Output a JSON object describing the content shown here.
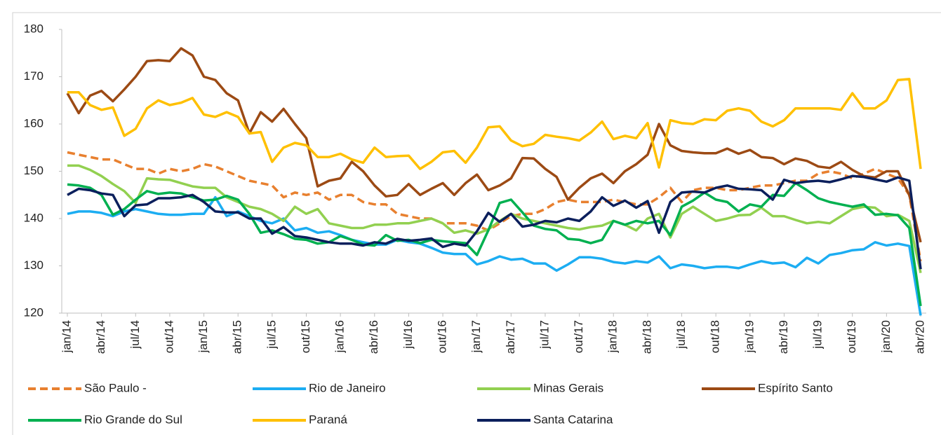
{
  "chart_data": {
    "type": "line",
    "categories": [
      "jan/14",
      null,
      null,
      "abr/14",
      null,
      null,
      "jul/14",
      null,
      null,
      "out/14",
      null,
      null,
      "jan/15",
      null,
      null,
      "abr/15",
      null,
      null,
      "jul/15",
      null,
      null,
      "out/15",
      null,
      null,
      "jan/16",
      null,
      null,
      "abr/16",
      null,
      null,
      "jul/16",
      null,
      null,
      "out/16",
      null,
      null,
      "jan/17",
      null,
      null,
      "abr/17",
      null,
      null,
      "jul/17",
      null,
      null,
      "out/17",
      null,
      null,
      "jan/18",
      null,
      null,
      "abr/18",
      null,
      null,
      "jul/18",
      null,
      null,
      "out/18",
      null,
      null,
      "jan/19",
      null,
      null,
      "abr/19",
      null,
      null,
      "jul/19",
      null,
      null,
      "out/19",
      null,
      null,
      "jan/20",
      null,
      null,
      "abr/20"
    ],
    "ylim": [
      120,
      180
    ],
    "yticks": [
      120,
      130,
      140,
      150,
      160,
      170,
      180
    ],
    "grid": false,
    "series": [
      {
        "name": "São Paulo -",
        "color": "#e8802f",
        "line_style": "dashed",
        "values": [
          154,
          153.5,
          153,
          152.5,
          152.5,
          151.5,
          150.5,
          150.5,
          149.5,
          150.5,
          150,
          150.5,
          151.5,
          151,
          150,
          149,
          148,
          147.5,
          147,
          144.5,
          145.5,
          145,
          145.5,
          144,
          145,
          145,
          143.5,
          143,
          143,
          141,
          140.5,
          140,
          140,
          139,
          139,
          139,
          138.5,
          137.5,
          139,
          140.5,
          141,
          141,
          142,
          143.5,
          144,
          143.5,
          143.5,
          143.5,
          144,
          143.5,
          143,
          143,
          144.5,
          146.5,
          143.5,
          146,
          146.5,
          146.5,
          146,
          146,
          146.5,
          147,
          147,
          147.5,
          148,
          148,
          149.5,
          150,
          149.5,
          148.5,
          149.5,
          150.5,
          149.5,
          148.5,
          145,
          131
        ]
      },
      {
        "name": "Rio de Janeiro",
        "color": "#1cadf2",
        "values": [
          141,
          141.5,
          141.5,
          141.2,
          140.5,
          141.5,
          142,
          141.5,
          141,
          140.8,
          140.8,
          141,
          141,
          144.5,
          140.5,
          141.5,
          140.5,
          139.5,
          139,
          140,
          137.5,
          138,
          137,
          137.3,
          136.5,
          135.5,
          135,
          134.5,
          134.5,
          135.5,
          135,
          134.7,
          133.8,
          132.8,
          132.5,
          132.5,
          130.3,
          131,
          132,
          131.3,
          131.5,
          130.5,
          130.5,
          129,
          130.3,
          131.8,
          131.8,
          131.5,
          130.8,
          130.5,
          131,
          130.7,
          132,
          129.5,
          130.3,
          130,
          129.5,
          129.8,
          129.8,
          129.5,
          130.3,
          131,
          130.5,
          130.7,
          129.7,
          131.7,
          130.5,
          132.3,
          132.7,
          133.3,
          133.5,
          135,
          134.3,
          134.7,
          134.2,
          119.5
        ]
      },
      {
        "name": "Minas Gerais",
        "color": "#92d050",
        "values": [
          151.2,
          151.2,
          150.3,
          149,
          147.3,
          145.8,
          143.3,
          148.5,
          148.3,
          148.2,
          147.5,
          146.8,
          146.5,
          146.5,
          144.5,
          143.5,
          142.5,
          142,
          141,
          139.5,
          142.5,
          141,
          142,
          139,
          138.5,
          138,
          138,
          138.7,
          138.7,
          139,
          139,
          139.5,
          140,
          139,
          137,
          137.5,
          136.8,
          137.7,
          139.5,
          141,
          140,
          139.5,
          139,
          138.5,
          138,
          137.7,
          138.2,
          138.5,
          139.5,
          138.7,
          137.5,
          140,
          141,
          136,
          141,
          142.5,
          141,
          139.5,
          140,
          140.7,
          140.8,
          142.3,
          140.5,
          140.5,
          139.7,
          139,
          139.3,
          139,
          140.5,
          142,
          142.5,
          142.3,
          140.5,
          140.8,
          139.5,
          128.5
        ]
      },
      {
        "name": "Espírito Santo",
        "color": "#9c4a14",
        "values": [
          166.5,
          162.3,
          166,
          167,
          164.8,
          167.3,
          170,
          173.3,
          173.5,
          173.3,
          176,
          174.5,
          170,
          169.3,
          166.5,
          165,
          158,
          162.5,
          160.5,
          163.2,
          160,
          157,
          146.8,
          148,
          148.5,
          152,
          150,
          147,
          144.7,
          145,
          147.3,
          145,
          146.3,
          147.5,
          145,
          147.5,
          149.3,
          146,
          147,
          148.5,
          152.8,
          152.7,
          150.5,
          148.8,
          144,
          146.5,
          148.5,
          149.5,
          147.5,
          150,
          151.5,
          153.5,
          160,
          155.5,
          154.3,
          154,
          153.8,
          153.8,
          154.8,
          153.7,
          154.5,
          153,
          152.8,
          151.5,
          152.7,
          152.2,
          151,
          150.7,
          152,
          150.3,
          149,
          148.7,
          150,
          150,
          145,
          135
        ]
      },
      {
        "name": "Rio Grande do Sul",
        "color": "#00b050",
        "values": [
          147.2,
          147,
          146.5,
          145,
          140.8,
          142,
          144,
          145.8,
          145.2,
          145.5,
          145.3,
          144.5,
          143.8,
          144,
          144.8,
          144,
          141,
          137,
          137.5,
          136.7,
          135.7,
          135.5,
          134.7,
          135,
          136.3,
          135.5,
          134.5,
          134.3,
          136.5,
          135.3,
          135.5,
          134.8,
          135.5,
          135.2,
          135,
          134.8,
          132.3,
          137.5,
          143.3,
          144,
          141.3,
          138.5,
          137.8,
          137.5,
          135.7,
          135.5,
          134.8,
          135.5,
          139.5,
          138.7,
          139.5,
          139,
          139.5,
          136.5,
          142.5,
          143.8,
          145.5,
          144,
          143.5,
          141.5,
          143,
          142.5,
          145,
          144.8,
          147.5,
          146,
          144.3,
          143.5,
          143,
          142.5,
          143,
          140.8,
          141,
          140.7,
          138,
          121.5
        ]
      },
      {
        "name": "Paraná",
        "color": "#ffc000",
        "values": [
          166.7,
          166.7,
          164,
          163,
          163.5,
          157.5,
          159,
          163.3,
          165,
          164,
          164.5,
          165.5,
          162,
          161.5,
          162.5,
          161.5,
          158,
          158.3,
          152,
          155,
          156,
          155.5,
          153,
          153,
          153.7,
          152.5,
          151.8,
          155,
          153,
          153.2,
          153.3,
          150.5,
          152,
          154,
          154.3,
          151.8,
          155,
          159.3,
          159.5,
          156.5,
          155.3,
          155.8,
          157.7,
          157.3,
          157,
          156.5,
          158.2,
          160.5,
          156.8,
          157.5,
          157,
          160.2,
          150.8,
          160.8,
          160.2,
          160,
          161,
          160.8,
          162.8,
          163.3,
          162.8,
          160.5,
          159.5,
          160.8,
          163.3,
          163.3,
          163.3,
          163.3,
          163,
          166.5,
          163.3,
          163.3,
          165,
          169.3,
          169.5,
          150.5
        ]
      },
      {
        "name": "Santa Catarina",
        "color": "#0b1f5c",
        "values": [
          145,
          146.3,
          146,
          145.3,
          145,
          140.5,
          142.8,
          143,
          144.3,
          144.3,
          144.5,
          145,
          143.5,
          141.5,
          141.3,
          141.3,
          140,
          140,
          136.8,
          138.2,
          136.3,
          136,
          135.5,
          135,
          134.7,
          134.7,
          134.3,
          135,
          134.7,
          135.7,
          135.3,
          135.5,
          135.8,
          134,
          134.7,
          134.3,
          137.3,
          141.2,
          139.3,
          141,
          138.3,
          138.7,
          139.5,
          139.2,
          140,
          139.5,
          141.5,
          144.5,
          142.7,
          143.8,
          142.3,
          143.7,
          137,
          143.5,
          145.5,
          145.7,
          145.5,
          146.5,
          147,
          146.3,
          146.2,
          146,
          144,
          148.2,
          147.5,
          147.8,
          148,
          147.7,
          148.3,
          149,
          148.8,
          148.3,
          147.8,
          148.7,
          148,
          129.3
        ]
      }
    ]
  }
}
